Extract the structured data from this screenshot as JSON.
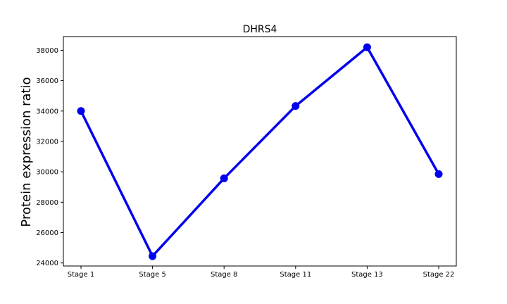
{
  "chart_data": {
    "type": "line",
    "title": "DHRS4",
    "xlabel": "",
    "ylabel": "Protein expression ratio",
    "categories": [
      "Stage 1",
      "Stage 5",
      "Stage 8",
      "Stage 11",
      "Stage 13",
      "Stage 22"
    ],
    "values": [
      34000,
      24450,
      29570,
      34330,
      38200,
      29850
    ],
    "ylim": [
      23800,
      38900
    ],
    "yticks": [
      24000,
      26000,
      28000,
      30000,
      32000,
      34000,
      36000,
      38000
    ],
    "grid": false,
    "color": "#0000ee"
  }
}
